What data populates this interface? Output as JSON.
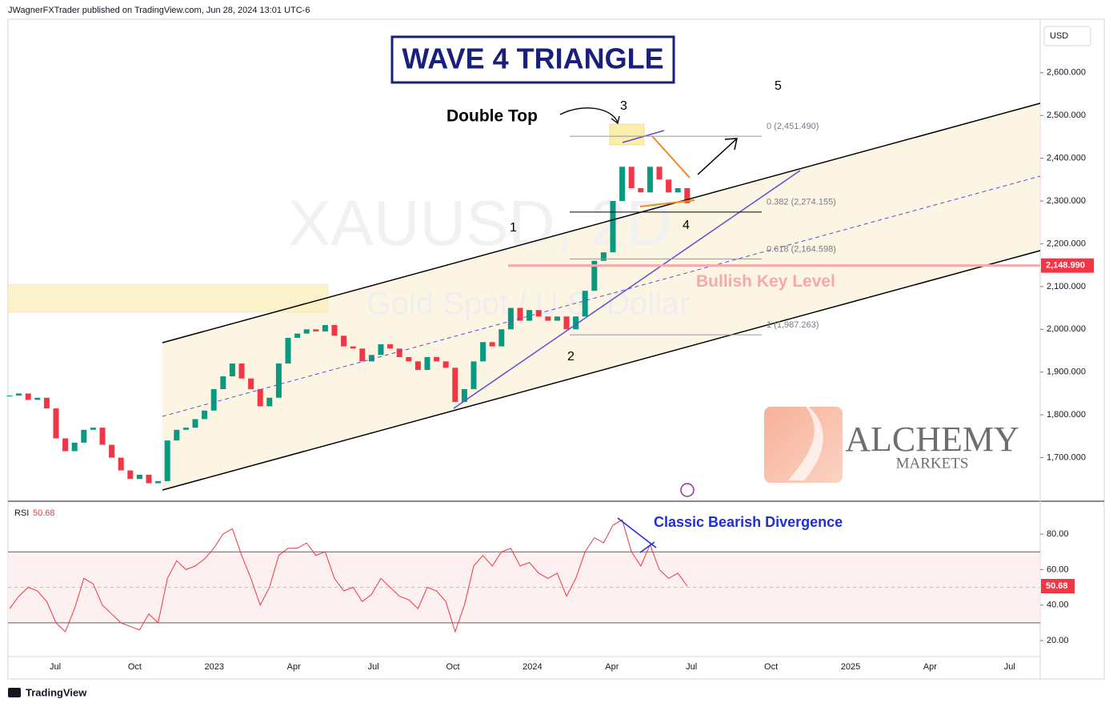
{
  "header": "JWagnerFXTrader published on TradingView.com, Jun 28, 2024 13:01 UTC-6",
  "footer": "TradingView",
  "brand": {
    "name": "ALCHEMY",
    "sub": "MARKETS"
  },
  "chart_data": [
    {
      "type": "candlestick",
      "title": "WAVE 4 TRIANGLE",
      "watermark_symbol": "XAUUSD, 2D",
      "watermark_name": "Gold Spot / U.S. Dollar",
      "currency": "USD",
      "up_color": "#089981",
      "down_color": "#f23645",
      "values": [
        1845,
        1850,
        1835,
        1840,
        1815,
        1745,
        1715,
        1735,
        1765,
        1770,
        1730,
        1700,
        1670,
        1650,
        1660,
        1640,
        1645,
        1740,
        1765,
        1770,
        1790,
        1810,
        1860,
        1890,
        1920,
        1885,
        1860,
        1820,
        1840,
        1920,
        1980,
        1990,
        2000,
        1995,
        2010,
        1985,
        1960,
        1955,
        1925,
        1940,
        1965,
        1955,
        1935,
        1925,
        1905,
        1935,
        1925,
        1910,
        1830,
        1860,
        1925,
        1970,
        1960,
        2000,
        2050,
        2020,
        2045,
        2030,
        2020,
        2030,
        2000,
        2030,
        2090,
        2160,
        2180,
        2300,
        2380,
        2330,
        2320,
        2380,
        2350,
        2320,
        2330,
        2295
      ],
      "ylim": [
        1598,
        2725
      ],
      "yticks": [
        {
          "value": 1700,
          "label": "1,700.000"
        },
        {
          "value": 1800,
          "label": "1,800.000"
        },
        {
          "value": 1900,
          "label": "1,900.000"
        },
        {
          "value": 2000,
          "label": "2,000.000"
        },
        {
          "value": 2100,
          "label": "2,100.000"
        },
        {
          "value": 2200,
          "label": "2,200.000"
        },
        {
          "value": 2300,
          "label": "2,300.000"
        },
        {
          "value": 2400,
          "label": "2,400.000"
        },
        {
          "value": 2500,
          "label": "2,500.000"
        },
        {
          "value": 2600,
          "label": "2,600.000"
        }
      ],
      "key_level": {
        "value": 2148.99,
        "label": "2,148.990"
      },
      "key_level_text": "Bullish Key Level",
      "fib_levels": [
        {
          "value": 2451.49,
          "label": "0 (2,451.490)"
        },
        {
          "value": 2274.155,
          "label": "0.382 (2,274.155)"
        },
        {
          "value": 2164.598,
          "label": "0.618 (2,164.598)"
        },
        {
          "value": 1987.263,
          "label": "1 (1,987.263)"
        }
      ],
      "annotation": "Double Top",
      "wave_labels": [
        "1",
        "2",
        "3",
        "4",
        "5"
      ]
    },
    {
      "type": "line",
      "name": "RSI",
      "color": "#f23645",
      "values": [
        38,
        45,
        50,
        48,
        42,
        30,
        25,
        38,
        55,
        52,
        40,
        35,
        30,
        28,
        26,
        35,
        30,
        55,
        65,
        60,
        62,
        66,
        72,
        80,
        83,
        68,
        55,
        40,
        50,
        68,
        72,
        72,
        75,
        68,
        70,
        55,
        48,
        50,
        42,
        46,
        55,
        50,
        45,
        43,
        38,
        50,
        48,
        42,
        25,
        40,
        62,
        68,
        62,
        70,
        72,
        62,
        64,
        58,
        55,
        58,
        45,
        55,
        70,
        78,
        75,
        85,
        88,
        70,
        62,
        74,
        60,
        55,
        58,
        50.68
      ],
      "ylim": [
        11,
        97.6
      ],
      "yticks": [
        {
          "value": 20,
          "label": "20.00"
        },
        {
          "value": 40,
          "label": "40.00"
        },
        {
          "value": 60,
          "label": "60.00"
        },
        {
          "value": 80,
          "label": "80.00"
        }
      ],
      "band": [
        30,
        70
      ],
      "annotation": "Classic Bearish Divergence",
      "xticks": [
        "Jul",
        "Oct",
        "2023",
        "Apr",
        "Jul",
        "Oct",
        "2024",
        "Apr",
        "Jul",
        "Oct",
        "2025",
        "Apr",
        "Jul"
      ]
    }
  ]
}
